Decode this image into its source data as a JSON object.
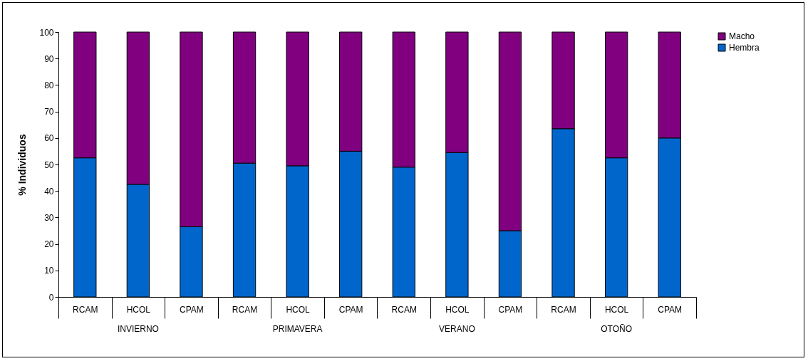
{
  "chart_data": {
    "type": "bar",
    "stacked": true,
    "ylabel": "% Individuos",
    "categories": [
      "RCAM",
      "HCOL",
      "CPAM",
      "RCAM",
      "HCOL",
      "CPAM",
      "RCAM",
      "HCOL",
      "CPAM",
      "RCAM",
      "HCOL",
      "CPAM"
    ],
    "annotations": [
      "INVIERNO",
      "PRIMAVERA",
      "VERANO",
      "OTOÑO"
    ],
    "series": [
      {
        "name": "Hembra",
        "color": "#0066cc",
        "values": [
          52.5,
          42.5,
          26.5,
          50.5,
          49.5,
          55,
          49,
          54.5,
          25,
          63.5,
          52.5,
          60
        ]
      },
      {
        "name": "Macho",
        "color": "#800080",
        "values": [
          47.5,
          57.5,
          73.5,
          49.5,
          50.5,
          45,
          51,
          45.5,
          75,
          36.5,
          47.5,
          40
        ]
      }
    ],
    "ylim": [
      0,
      100
    ],
    "yticks": [
      0,
      10,
      20,
      30,
      40,
      50,
      60,
      70,
      80,
      90,
      100
    ],
    "grid": false,
    "legend": "right"
  }
}
